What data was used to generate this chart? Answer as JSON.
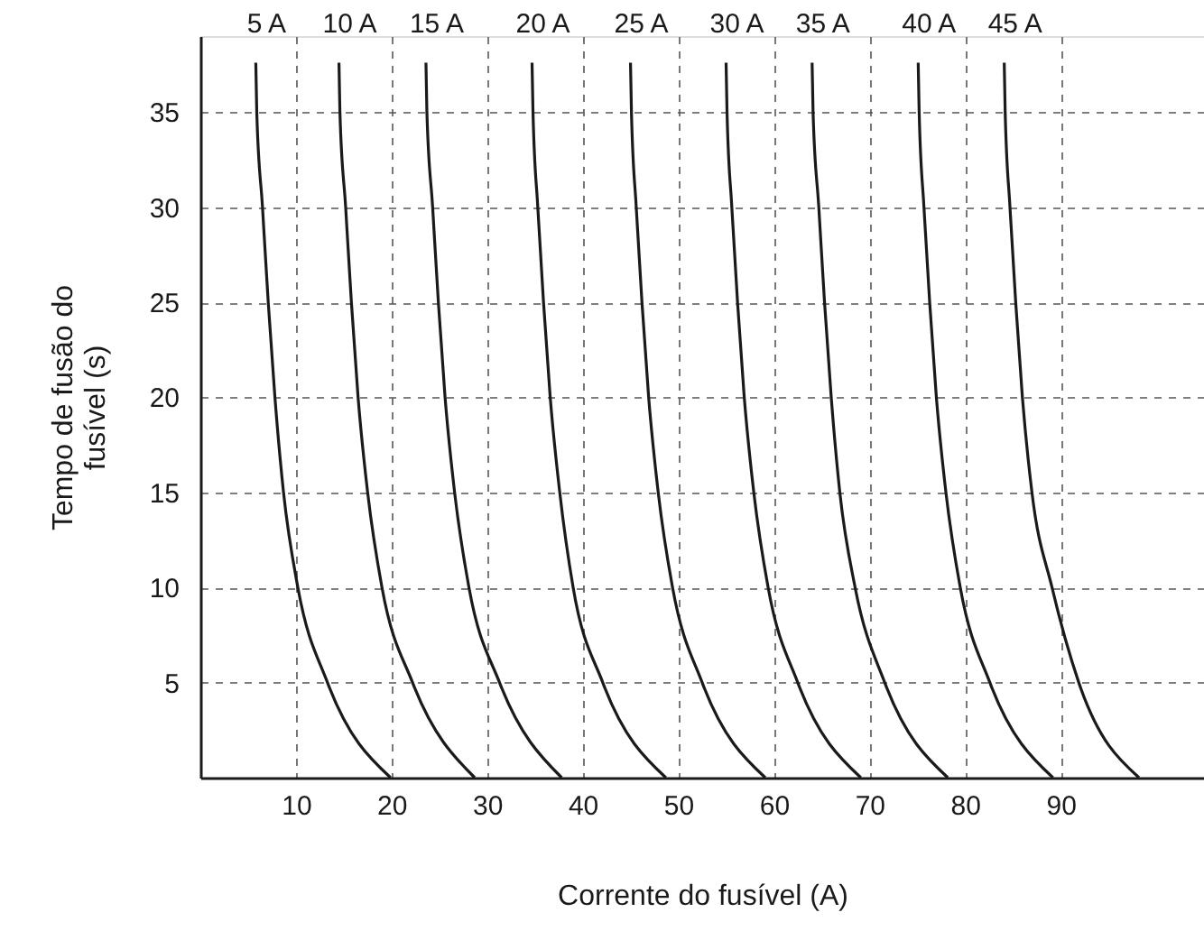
{
  "chart_data": {
    "type": "line",
    "xlabel": "Corrente do fusível (A)",
    "ylabel": "Tempo de fusão do fusível (s)",
    "xlim": [
      0,
      105
    ],
    "ylim": [
      0,
      39
    ],
    "xticks": [
      10,
      20,
      30,
      40,
      50,
      60,
      70,
      80,
      90
    ],
    "yticks": [
      5,
      10,
      15,
      20,
      25,
      30,
      35
    ],
    "grid": true,
    "line_style": "solid",
    "marker": "none",
    "series": [
      {
        "name": "5 A",
        "color": "#1a1a1a",
        "x": [
          5.8,
          5.9,
          6.5,
          7.1,
          7.8,
          8.7,
          10.2,
          13.3,
          19.9
        ],
        "values": [
          37.6,
          35,
          30,
          25,
          20,
          15,
          10,
          5,
          0
        ]
      },
      {
        "name": "10 A",
        "color": "#1a1a1a",
        "x": [
          14.5,
          14.6,
          15.2,
          15.8,
          16.5,
          17.5,
          19.0,
          22.2,
          28.7
        ],
        "values": [
          37.6,
          35,
          30,
          25,
          20,
          15,
          10,
          5,
          0
        ]
      },
      {
        "name": "15 A",
        "color": "#1a1a1a",
        "x": [
          23.6,
          23.7,
          24.3,
          24.9,
          25.6,
          26.6,
          28.1,
          31.3,
          37.8
        ],
        "values": [
          37.6,
          35,
          30,
          25,
          20,
          15,
          10,
          5,
          0
        ]
      },
      {
        "name": "20 A",
        "color": "#1a1a1a",
        "x": [
          34.7,
          34.8,
          35.3,
          35.9,
          36.6,
          37.6,
          39.0,
          42.1,
          48.7
        ],
        "values": [
          37.6,
          35,
          30,
          25,
          20,
          15,
          10,
          5,
          0
        ]
      },
      {
        "name": "25 A",
        "color": "#1a1a1a",
        "x": [
          45.0,
          45.1,
          45.6,
          46.2,
          46.9,
          47.9,
          49.4,
          52.5,
          59.1
        ],
        "values": [
          37.6,
          35,
          30,
          25,
          20,
          15,
          10,
          5,
          0
        ]
      },
      {
        "name": "30 A",
        "color": "#1a1a1a",
        "x": [
          55.0,
          55.1,
          55.6,
          56.2,
          56.9,
          57.9,
          59.4,
          62.5,
          69.1
        ],
        "values": [
          37.6,
          35,
          30,
          25,
          20,
          15,
          10,
          5,
          0
        ]
      },
      {
        "name": "35 A",
        "color": "#1a1a1a",
        "x": [
          64.0,
          64.1,
          64.7,
          65.3,
          66.0,
          66.9,
          68.5,
          71.6,
          78.2
        ],
        "values": [
          37.6,
          35,
          30,
          25,
          20,
          15,
          10,
          5,
          0
        ]
      },
      {
        "name": "40 A",
        "color": "#1a1a1a",
        "x": [
          75.1,
          75.2,
          75.7,
          76.3,
          77.0,
          78.0,
          79.5,
          82.6,
          89.2
        ],
        "values": [
          37.6,
          35,
          30,
          25,
          20,
          15,
          10,
          5,
          0
        ]
      },
      {
        "name": "45 A",
        "color": "#1a1a1a",
        "x": [
          84.1,
          84.2,
          84.7,
          85.3,
          86.0,
          87.0,
          89.1,
          91.9,
          98.2
        ],
        "values": [
          37.6,
          35,
          30,
          25,
          20,
          15,
          10,
          5,
          0
        ]
      }
    ]
  }
}
